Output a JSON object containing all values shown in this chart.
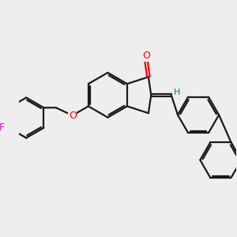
{
  "background_color": "#eeeeee",
  "bond_color": "#1a1a1a",
  "oxygen_color": "#ff0000",
  "fluorine_color": "#e000e0",
  "hydrogen_color": "#008080",
  "figsize": [
    3.0,
    3.0
  ],
  "dpi": 100,
  "xlim": [
    -2.8,
    3.2
  ],
  "ylim": [
    -2.8,
    1.8
  ]
}
